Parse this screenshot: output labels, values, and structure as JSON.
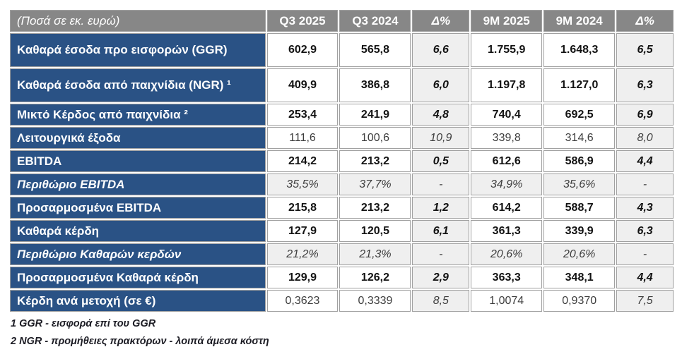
{
  "table": {
    "unit_label": "(Ποσά σε εκ. ευρώ)",
    "columns": [
      "Q3 2025",
      "Q3 2024",
      "Δ%",
      "9M 2025",
      "9M 2024",
      "Δ%"
    ],
    "rows": [
      {
        "label": "Καθαρά έσοδα προ εισφορών (GGR)",
        "values": [
          "602,9",
          "565,8",
          "6,6",
          "1.755,9",
          "1.648,3",
          "6,5"
        ]
      },
      {
        "label": "Καθαρά έσοδα από παιχνίδια (NGR) ¹",
        "values": [
          "409,9",
          "386,8",
          "6,0",
          "1.197,8",
          "1.127,0",
          "6,3"
        ]
      },
      {
        "label": "Μικτό Κέρδος από παιχνίδια ²",
        "values": [
          "253,4",
          "241,9",
          "4,8",
          "740,4",
          "692,5",
          "6,9"
        ]
      },
      {
        "label": "Λειτουργικά έξοδα",
        "values": [
          "111,6",
          "100,6",
          "10,9",
          "339,8",
          "314,6",
          "8,0"
        ]
      },
      {
        "label": "EBITDA",
        "values": [
          "214,2",
          "213,2",
          "0,5",
          "612,6",
          "586,9",
          "4,4"
        ]
      },
      {
        "label": "Περιθώριο EBITDA",
        "values": [
          "35,5%",
          "37,7%",
          "-",
          "34,9%",
          "35,6%",
          "-"
        ]
      },
      {
        "label": "Προσαρμοσμένα EBITDA",
        "values": [
          "215,8",
          "213,2",
          "1,2",
          "614,2",
          "588,7",
          "4,3"
        ]
      },
      {
        "label": "Καθαρά κέρδη",
        "values": [
          "127,9",
          "120,5",
          "6,1",
          "361,3",
          "339,9",
          "6,3"
        ]
      },
      {
        "label": "Περιθώριο Καθαρών κερδών",
        "values": [
          "21,2%",
          "21,3%",
          "-",
          "20,6%",
          "20,6%",
          "-"
        ]
      },
      {
        "label": "Προσαρμοσμένα Καθαρά κέρδη",
        "values": [
          "129,9",
          "126,2",
          "2,9",
          "363,3",
          "348,1",
          "4,4"
        ]
      },
      {
        "label": "Κέρδη ανά μετοχή (σε €)",
        "values": [
          "0,3623",
          "0,3339",
          "8,5",
          "1,0074",
          "0,9370",
          "7,5"
        ]
      }
    ]
  },
  "footnotes": [
    "1 GGR - εισφορά επί του GGR",
    "2 NGR - προμήθειες πρακτόρων - λοιπά άμεσα κόστη"
  ],
  "colors": {
    "row_label_bg": "#2a5285",
    "header_bg": "#878787",
    "delta_cell_bg": "#efefef",
    "cell_border": "#a0a0a0",
    "header_text": "#ffffff",
    "bold_value_text": "#121212",
    "normal_value_text": "#3d3d3d",
    "footnote_text": "#1c1c24"
  }
}
